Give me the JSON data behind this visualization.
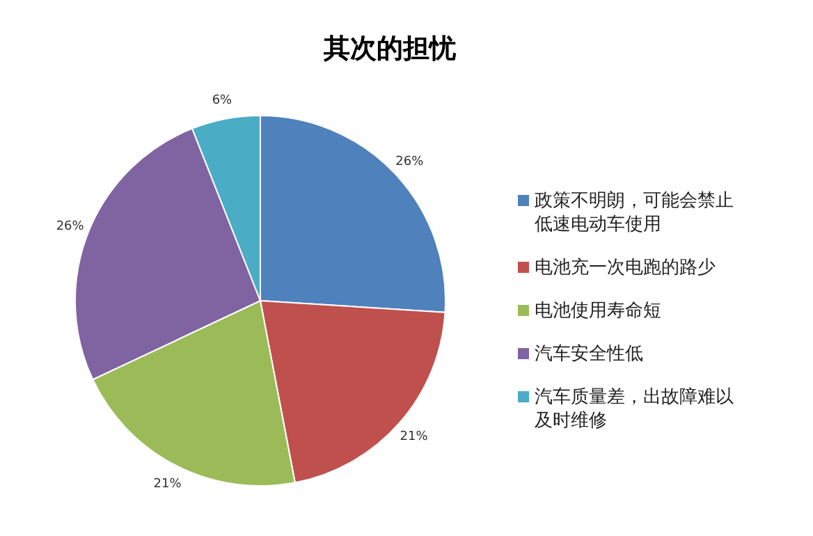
{
  "chart_data": {
    "type": "pie",
    "title": "其次的担忧",
    "categories": [
      "政策不明朗，可能会禁止低速电动车使用",
      "电池充一次电跑的路少",
      "电池使用寿命短",
      "汽车安全性低",
      "汽车质量差，出故障难以及时维修"
    ],
    "values": [
      26,
      21,
      21,
      26,
      6
    ],
    "colors": [
      "#4f81bd",
      "#c0504d",
      "#9bbb59",
      "#8064a2",
      "#4bacc6"
    ],
    "value_labels": [
      "26%",
      "21%",
      "21%",
      "26%",
      "6%"
    ],
    "legend": "right"
  }
}
